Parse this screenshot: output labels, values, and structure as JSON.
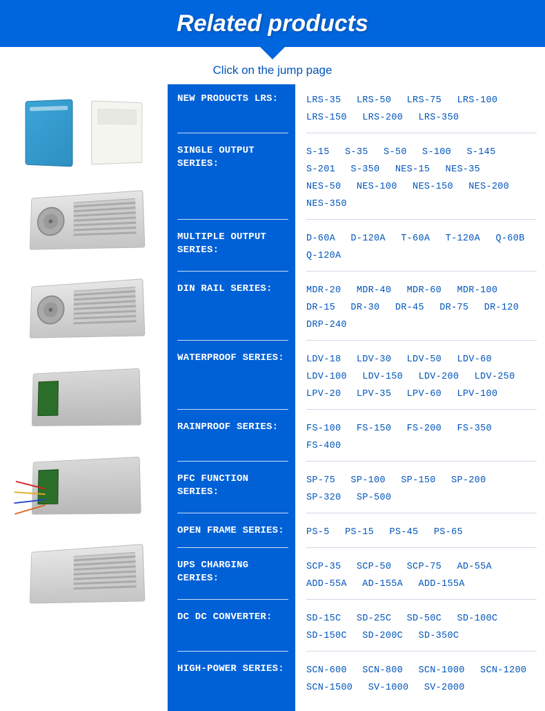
{
  "header": {
    "title": "Related products",
    "subtitle": "Click on the jump page"
  },
  "colors": {
    "header_bg": "#0066dd",
    "cat_bg": "#0060d6",
    "link_color": "#0055bb",
    "subtitle_color": "#0055bb"
  },
  "categories": [
    {
      "label": "NEW PRODUCTS LRS:",
      "products": [
        "LRS-35",
        "LRS-50",
        "LRS-75",
        "LRS-100",
        "LRS-150",
        "LRS-200",
        "LRS-350"
      ]
    },
    {
      "label": "SINGLE OUTPUT SERIES:",
      "products": [
        "S-15",
        "S-35",
        "S-50",
        "S-100",
        "S-145",
        "S-201",
        "S-350",
        "NES-15",
        "NES-35",
        "NES-50",
        "NES-100",
        "NES-150",
        "NES-200",
        "NES-350"
      ]
    },
    {
      "label": "MULTIPLE OUTPUT SERIES:",
      "products": [
        "D-60A",
        "D-120A",
        "T-60A",
        "T-120A",
        "Q-60B",
        "Q-120A"
      ]
    },
    {
      "label": "DIN RAIL SERIES:",
      "products": [
        "MDR-20",
        "MDR-40",
        "MDR-60",
        "MDR-100",
        "DR-15",
        "DR-30",
        "DR-45",
        "DR-75",
        "DR-120",
        "DRP-240"
      ]
    },
    {
      "label": "WATERPROOF SERIES:",
      "products": [
        "LDV-18",
        "LDV-30",
        "LDV-50",
        "LDV-60",
        "LDV-100",
        "LDV-150",
        "LDV-200",
        "LDV-250",
        "LPV-20",
        "LPV-35",
        "LPV-60",
        "LPV-100"
      ]
    },
    {
      "label": "RAINPROOF SERIES:",
      "products": [
        "FS-100",
        "FS-150",
        "FS-200",
        "FS-350",
        "FS-400"
      ]
    },
    {
      "label": "PFC FUNCTION SERIES:",
      "products": [
        "SP-75",
        "SP-100",
        "SP-150",
        "SP-200",
        "SP-320",
        "SP-500"
      ]
    },
    {
      "label": "OPEN FRAME SERIES:",
      "products": [
        "PS-5",
        "PS-15",
        "PS-45",
        "PS-65"
      ]
    },
    {
      "label": "UPS CHARGING CERIES:",
      "products": [
        "SCP-35",
        "SCP-50",
        "SCP-75",
        "AD-55A",
        "ADD-55A",
        "AD-155A",
        "ADD-155A"
      ]
    },
    {
      "label": "DC DC CONVERTER:",
      "products": [
        "SD-15C",
        "SD-25C",
        "SD-50C",
        "SD-100C",
        "SD-150C",
        "SD-200C",
        "SD-350C"
      ]
    },
    {
      "label": "HIGH-POWER SERIES:",
      "products": [
        "SCN-600",
        "SCN-800",
        "SCN-1000",
        "SCN-1200",
        "SCN-1500",
        "SV-1000",
        "SV-2000"
      ]
    }
  ]
}
